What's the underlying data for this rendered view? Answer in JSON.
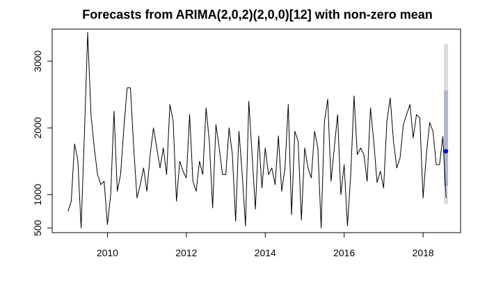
{
  "chart_data": {
    "type": "line",
    "title": "Forecasts from ARIMA(2,0,2)(2,0,0)[12] with non-zero mean",
    "xlabel": "",
    "ylabel": "",
    "xlim": [
      2008.6,
      2018.95
    ],
    "ylim": [
      430,
      3480
    ],
    "x_ticks": [
      {
        "value": 2010,
        "label": "2010"
      },
      {
        "value": 2012,
        "label": "2012"
      },
      {
        "value": 2014,
        "label": "2014"
      },
      {
        "value": 2016,
        "label": "2016"
      },
      {
        "value": 2018,
        "label": "2018"
      }
    ],
    "y_ticks": [
      {
        "value": 500,
        "label": "500"
      },
      {
        "value": 1000,
        "label": "1000"
      },
      {
        "value": 2000,
        "label": "2000"
      },
      {
        "value": 3000,
        "label": "3000"
      }
    ],
    "grid": false,
    "legend": "none",
    "series": [
      {
        "style": "line",
        "color": "#000000",
        "start": 2009.0,
        "step": 0.0833333,
        "values": [
          750,
          900,
          1760,
          1520,
          500,
          1900,
          3430,
          2200,
          1700,
          1300,
          1150,
          1200,
          550,
          1000,
          2250,
          1050,
          1300,
          2000,
          2600,
          2600,
          1700,
          950,
          1150,
          1400,
          1050,
          1600,
          2000,
          1700,
          1400,
          1700,
          1300,
          2350,
          2100,
          900,
          1500,
          1350,
          1250,
          2200,
          1200,
          1050,
          1500,
          1300,
          2300,
          1800,
          800,
          2050,
          1700,
          1300,
          1300,
          2000,
          1600,
          600,
          1950,
          1300,
          530,
          2400,
          1600,
          780,
          1880,
          1100,
          1700,
          1300,
          1400,
          1150,
          1880,
          1050,
          1400,
          2350,
          700,
          1950,
          1800,
          620,
          1700,
          1400,
          1250,
          1950,
          1700,
          500,
          2100,
          2430,
          1200,
          1700,
          2200,
          1000,
          1450,
          530,
          1300,
          2480,
          1600,
          1700,
          1600,
          1200,
          2300,
          1800,
          1180,
          1350,
          1100,
          2100,
          2450,
          1800,
          1400,
          1550,
          2050,
          2200,
          2350,
          1850,
          2200,
          2150,
          950,
          1600,
          2080,
          1950,
          1450,
          1450,
          1870,
          950
        ]
      },
      {
        "name": "",
        "style": "forecast",
        "x": 2018.58,
        "point": 1650,
        "interval_80": [
          1130,
          2560
        ],
        "interval_95": [
          860,
          3260
        ],
        "point_color": "#0000ff",
        "band80_color": "#b0b6d2",
        "band95_color": "#dadbe3"
      }
    ]
  }
}
